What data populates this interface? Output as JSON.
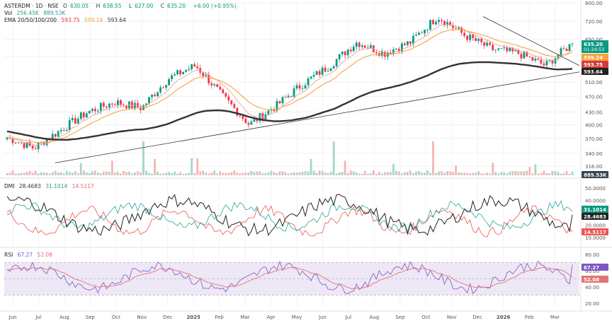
{
  "header": {
    "symbol_line": "ASTERDM · 1D · NSE",
    "ohlc": {
      "o_label": "O",
      "o": "630.05",
      "h_label": "H",
      "h": "638.55",
      "l_label": "L",
      "l": "627.00",
      "c_label": "C",
      "c": "635.20",
      "change": "+6.00 (+0.95%)"
    },
    "vol_label": "Vol",
    "vol_values": [
      "256.45K",
      "889.53K"
    ],
    "ema_label": "EMA 20/50/100/200",
    "ema_values": [
      "593.75",
      "599.24",
      "593.64"
    ]
  },
  "dmi_header": {
    "label": "DMI",
    "values": [
      "28.4683",
      "31.1014",
      "14.5117"
    ]
  },
  "rsi_header": {
    "label": "RSI",
    "values": [
      "67.27",
      "52.08"
    ]
  },
  "colors": {
    "up": "#089981",
    "down": "#f23645",
    "ema20": "#f4a6a6",
    "ema50": "#f7a33d",
    "ema200": "#333333",
    "adx": "#222222",
    "di_plus": "#26a69a",
    "di_minus": "#ef5350",
    "rsi": "#7e57c2",
    "rsi_ma": "#e57373",
    "rsi_band": "#ede7f6"
  },
  "price_axis_ticks": [
    "800.00",
    "720.00",
    "650.00",
    "590.00",
    "510.00",
    "470.00",
    "430.00",
    "400.00",
    "370.00",
    "340.00",
    "316.00"
  ],
  "price_badges": [
    {
      "label": "635.20",
      "sub": "01:24:53",
      "color": "#089981"
    },
    {
      "label": "599.24",
      "color": "#f7a33d"
    },
    {
      "label": "593.75",
      "color": "#d23a3a"
    },
    {
      "label": "593.64",
      "color": "#222222"
    }
  ],
  "vol_badge": "889.53K",
  "dmi_axis_ticks": [
    "50.0000",
    "40.0000",
    "20.0000",
    "10.0000"
  ],
  "dmi_badges": [
    {
      "label": "31.1014",
      "color": "#089981"
    },
    {
      "label": "28.4683",
      "color": "#222222"
    },
    {
      "label": "14.5117",
      "color": "#ef5350"
    }
  ],
  "rsi_axis_ticks": [
    "80.00",
    "60.00",
    "40.00",
    "20.00"
  ],
  "rsi_badges": [
    {
      "label": "67.27",
      "color": "#7e57c2"
    },
    {
      "label": "52.08",
      "color": "#e57373"
    }
  ],
  "time_axis": [
    "Jun",
    "Jul",
    "Aug",
    "Sep",
    "Oct",
    "Nov",
    "Dec",
    "2025",
    "Feb",
    "Mar",
    "Apr",
    "May",
    "Jun",
    "Jul",
    "Aug",
    "Sep",
    "Oct",
    "Nov",
    "Dec",
    "2026",
    "Feb",
    "Mar"
  ],
  "chart_data": {
    "type": "candlestick",
    "title": "ASTERDM · 1D · NSE",
    "x_range": [
      "Jun",
      "Mar"
    ],
    "y_scale": "log",
    "ylim": [
      300,
      800
    ],
    "price_path": {
      "x": [
        "Jun",
        "Jul",
        "Aug",
        "Sep",
        "Oct",
        "Nov",
        "Dec",
        "2025",
        "Feb",
        "Mar",
        "Apr",
        "May",
        "Jun",
        "Jul",
        "Aug",
        "Sep",
        "Oct",
        "Nov",
        "Dec",
        "2026",
        "Feb",
        "Mar"
      ],
      "close": [
        372,
        350,
        388,
        430,
        455,
        440,
        520,
        560,
        470,
        400,
        445,
        505,
        560,
        640,
        600,
        640,
        740,
        665,
        615,
        600,
        560,
        635
      ]
    },
    "annotations": [
      "rising support trendline",
      "descending resistance trendline"
    ],
    "series": [
      {
        "name": "EMA 20",
        "last": 593.75
      },
      {
        "name": "EMA 50",
        "last": 599.24
      },
      {
        "name": "EMA 200",
        "last": 593.64
      }
    ],
    "volume": {
      "label": "Vol",
      "values": [
        "256.45K",
        "889.53K"
      ]
    },
    "dmi": {
      "adx": 28.4683,
      "di_plus": 31.1014,
      "di_minus": 14.5117,
      "ylim": [
        5,
        55
      ]
    },
    "rsi": {
      "rsi": 67.27,
      "rsi_ma": 52.08,
      "ylim": [
        15,
        85
      ],
      "band": [
        30,
        70
      ]
    }
  }
}
